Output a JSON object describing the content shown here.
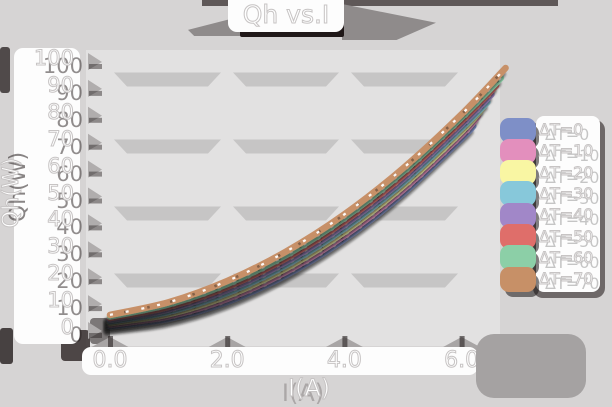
{
  "title": "Qh vs.I",
  "axes": {
    "xlabel": "I(A)",
    "ylabel": "Qh(W)",
    "y_ticks": [
      "100",
      "90",
      "80",
      "70",
      "60",
      "50",
      "40",
      "30",
      "20",
      "10",
      "0"
    ],
    "x_ticks": [
      "0.0",
      "2.0",
      "4.0",
      "6.0"
    ]
  },
  "legend": {
    "entries": [
      {
        "label": "ΔT=0",
        "color": "#7e8fc7"
      },
      {
        "label": "ΔT=10",
        "color": "#e38fbd"
      },
      {
        "label": "ΔT=20",
        "color": "#f9f6a3"
      },
      {
        "label": "ΔT=30",
        "color": "#87c8da"
      },
      {
        "label": "ΔT=40",
        "color": "#a187c8"
      },
      {
        "label": "ΔT=50",
        "color": "#df6e6a"
      },
      {
        "label": "ΔT=60",
        "color": "#8ccfa7"
      },
      {
        "label": "ΔT=70",
        "color": "#c79067"
      }
    ]
  },
  "colors": {
    "page_bg": "#d6d4d4",
    "plot_bg": "#e2e1e1",
    "grid_band": "#c6c5c5",
    "band_white": "#fdfdfd",
    "shadow_dark": "#201818",
    "shadow_mid": "#8f8b8b"
  },
  "chart_data": {
    "type": "line",
    "title": "Qh vs.I",
    "xlabel": "I(A)",
    "ylabel": "Qh(W)",
    "xlim": [
      -0.4,
      6.9
    ],
    "ylim": [
      0,
      100
    ],
    "grid": true,
    "legend_position": "right",
    "series": [
      {
        "name": "ΔT=0",
        "color": "#7e8fc7",
        "I": [
          0,
          1,
          2,
          3,
          4,
          5,
          6,
          6.2
        ],
        "Qh": [
          0.3,
          3.1,
          9.4,
          19.3,
          32.7,
          49.7,
          70.2,
          74.7
        ]
      },
      {
        "name": "ΔT=10",
        "color": "#e38fbd",
        "I": [
          0,
          1,
          2,
          3,
          4,
          5,
          6,
          6.28
        ],
        "Qh": [
          0.9,
          4.0,
          10.5,
          20.5,
          34.0,
          51.0,
          71.5,
          78.4
        ]
      },
      {
        "name": "ΔT=20",
        "color": "#f9f6a3",
        "I": [
          0,
          1,
          2,
          3,
          4,
          5,
          6,
          6.36
        ],
        "Qh": [
          1.5,
          4.8,
          11.6,
          21.8,
          35.4,
          52.4,
          72.8,
          81.4
        ]
      },
      {
        "name": "ΔT=30",
        "color": "#87c8da",
        "I": [
          0,
          1,
          2,
          3,
          4,
          5,
          6,
          6.44
        ],
        "Qh": [
          2.1,
          5.7,
          12.7,
          23.0,
          36.7,
          53.7,
          74.0,
          83.6
        ]
      },
      {
        "name": "ΔT=40",
        "color": "#a187c8",
        "I": [
          0,
          1,
          2,
          3,
          4,
          5,
          6,
          6.51
        ],
        "Qh": [
          2.7,
          6.6,
          13.8,
          24.2,
          38.0,
          55.0,
          75.3,
          86.5
        ]
      },
      {
        "name": "ΔT=50",
        "color": "#df6e6a",
        "I": [
          0,
          1,
          2,
          3,
          4,
          5,
          6,
          6.59
        ],
        "Qh": [
          3.3,
          7.5,
          14.9,
          25.5,
          39.3,
          56.3,
          76.6,
          89.8
        ]
      },
      {
        "name": "ΔT=60",
        "color": "#8ccfa7",
        "I": [
          0,
          1,
          2,
          3,
          4,
          5,
          6,
          6.67
        ],
        "Qh": [
          3.9,
          8.4,
          16.0,
          26.7,
          40.6,
          57.7,
          77.9,
          92.6
        ]
      },
      {
        "name": "ΔT=70",
        "color": "#c79067",
        "I": [
          0,
          1,
          2,
          3,
          4,
          5,
          6,
          6.75
        ],
        "Qh": [
          4.5,
          9.2,
          17.1,
          28.0,
          41.9,
          59.0,
          79.1,
          96.3
        ]
      }
    ]
  }
}
